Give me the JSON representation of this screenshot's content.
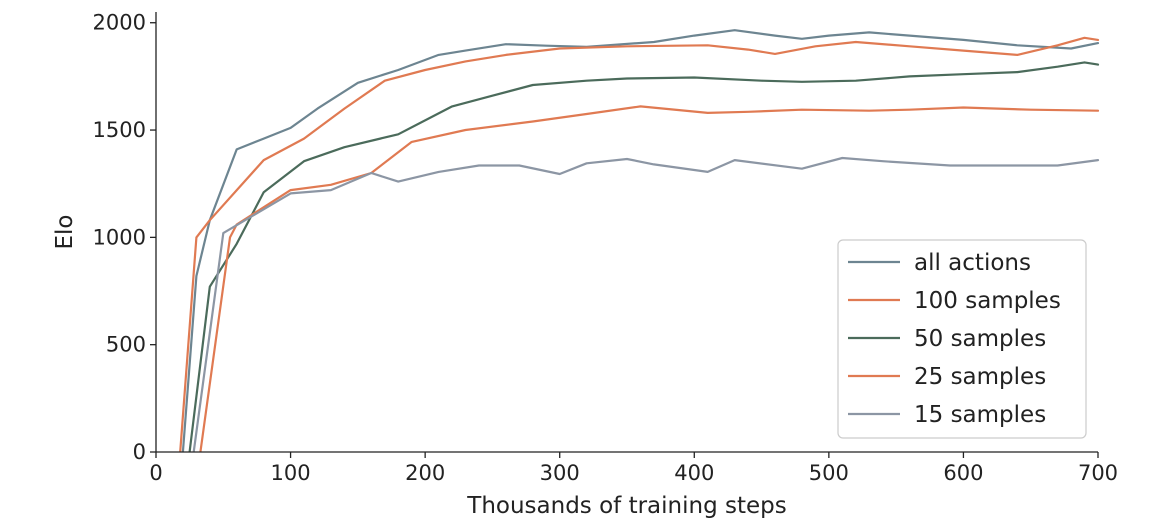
{
  "chart_data": {
    "type": "line",
    "title": "",
    "xlabel": "Thousands of training steps",
    "ylabel": "Elo",
    "xlim": [
      0,
      700
    ],
    "ylim": [
      0,
      2050
    ],
    "xticks": [
      0,
      100,
      200,
      300,
      400,
      500,
      600,
      700
    ],
    "yticks": [
      0,
      500,
      1000,
      1500,
      2000
    ],
    "grid": false,
    "legend_position": "lower-right",
    "series": [
      {
        "name": "all actions",
        "color": "#6d8591",
        "points": [
          [
            20,
            0
          ],
          [
            30,
            820
          ],
          [
            40,
            1080
          ],
          [
            60,
            1410
          ],
          [
            80,
            1460
          ],
          [
            100,
            1510
          ],
          [
            120,
            1600
          ],
          [
            150,
            1720
          ],
          [
            180,
            1780
          ],
          [
            210,
            1850
          ],
          [
            230,
            1870
          ],
          [
            260,
            1900
          ],
          [
            290,
            1893
          ],
          [
            320,
            1888
          ],
          [
            370,
            1910
          ],
          [
            400,
            1940
          ],
          [
            430,
            1965
          ],
          [
            460,
            1940
          ],
          [
            480,
            1925
          ],
          [
            500,
            1940
          ],
          [
            530,
            1955
          ],
          [
            560,
            1940
          ],
          [
            600,
            1920
          ],
          [
            640,
            1895
          ],
          [
            680,
            1880
          ],
          [
            700,
            1905
          ]
        ]
      },
      {
        "name": "100 samples",
        "color": "#e07a52",
        "points": [
          [
            18,
            0
          ],
          [
            30,
            1000
          ],
          [
            40,
            1080
          ],
          [
            80,
            1360
          ],
          [
            110,
            1460
          ],
          [
            140,
            1600
          ],
          [
            170,
            1730
          ],
          [
            200,
            1780
          ],
          [
            230,
            1820
          ],
          [
            260,
            1850
          ],
          [
            300,
            1880
          ],
          [
            350,
            1890
          ],
          [
            410,
            1895
          ],
          [
            440,
            1875
          ],
          [
            460,
            1855
          ],
          [
            490,
            1890
          ],
          [
            520,
            1910
          ],
          [
            560,
            1890
          ],
          [
            600,
            1870
          ],
          [
            640,
            1850
          ],
          [
            670,
            1895
          ],
          [
            690,
            1930
          ],
          [
            700,
            1920
          ]
        ]
      },
      {
        "name": "50 samples",
        "color": "#4b6b5b",
        "points": [
          [
            25,
            0
          ],
          [
            40,
            770
          ],
          [
            60,
            970
          ],
          [
            80,
            1210
          ],
          [
            110,
            1355
          ],
          [
            140,
            1420
          ],
          [
            180,
            1480
          ],
          [
            220,
            1610
          ],
          [
            250,
            1660
          ],
          [
            280,
            1710
          ],
          [
            320,
            1730
          ],
          [
            350,
            1740
          ],
          [
            400,
            1745
          ],
          [
            450,
            1730
          ],
          [
            480,
            1725
          ],
          [
            520,
            1730
          ],
          [
            560,
            1750
          ],
          [
            600,
            1760
          ],
          [
            640,
            1770
          ],
          [
            670,
            1795
          ],
          [
            690,
            1815
          ],
          [
            700,
            1805
          ]
        ]
      },
      {
        "name": "25 samples",
        "color": "#e07a52",
        "points": [
          [
            33,
            0
          ],
          [
            55,
            1000
          ],
          [
            60,
            1060
          ],
          [
            100,
            1220
          ],
          [
            130,
            1245
          ],
          [
            160,
            1300
          ],
          [
            190,
            1445
          ],
          [
            230,
            1500
          ],
          [
            280,
            1540
          ],
          [
            320,
            1575
          ],
          [
            360,
            1610
          ],
          [
            410,
            1580
          ],
          [
            440,
            1585
          ],
          [
            480,
            1595
          ],
          [
            530,
            1590
          ],
          [
            560,
            1595
          ],
          [
            600,
            1605
          ],
          [
            650,
            1595
          ],
          [
            700,
            1590
          ]
        ]
      },
      {
        "name": "15 samples",
        "color": "#8c96a4",
        "points": [
          [
            28,
            0
          ],
          [
            50,
            1020
          ],
          [
            100,
            1205
          ],
          [
            130,
            1220
          ],
          [
            160,
            1300
          ],
          [
            180,
            1260
          ],
          [
            210,
            1305
          ],
          [
            240,
            1335
          ],
          [
            270,
            1335
          ],
          [
            300,
            1295
          ],
          [
            320,
            1345
          ],
          [
            350,
            1365
          ],
          [
            370,
            1340
          ],
          [
            410,
            1305
          ],
          [
            430,
            1360
          ],
          [
            480,
            1320
          ],
          [
            510,
            1370
          ],
          [
            540,
            1355
          ],
          [
            590,
            1335
          ],
          [
            640,
            1335
          ],
          [
            670,
            1335
          ],
          [
            700,
            1360
          ]
        ]
      }
    ]
  }
}
